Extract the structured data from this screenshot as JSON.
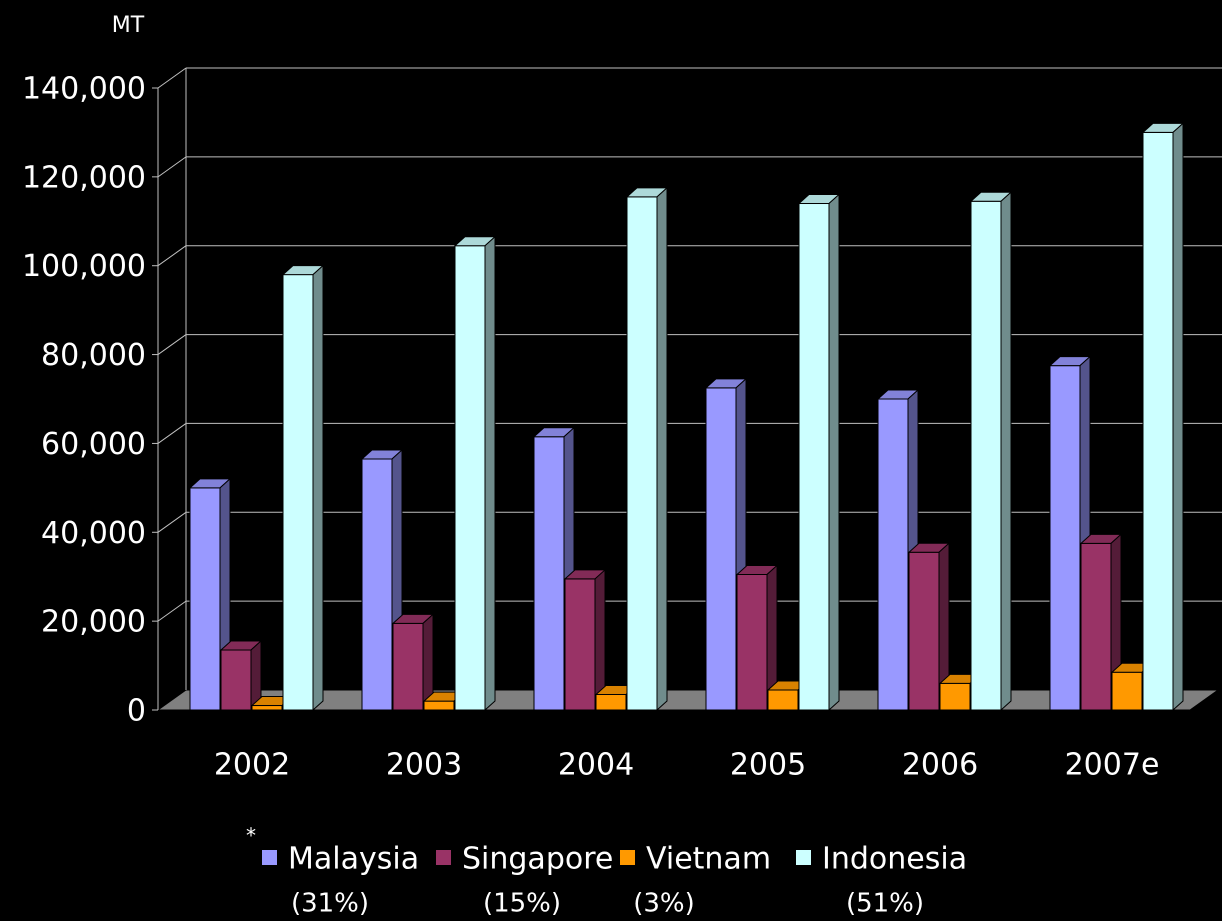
{
  "chart_data": {
    "type": "bar3d",
    "y_label": "MT",
    "categories": [
      "2002",
      "2003",
      "2004",
      "2005",
      "2006",
      "2007e"
    ],
    "series": [
      {
        "name": "Malaysia",
        "note": "(31%)",
        "color": "#9999ff",
        "values": [
          50000,
          56500,
          61500,
          72500,
          70000,
          77500
        ]
      },
      {
        "name": "Singapore",
        "note": "(15%)",
        "color": "#993366",
        "values": [
          13500,
          19500,
          29500,
          30500,
          35500,
          37500
        ]
      },
      {
        "name": "Vietnam",
        "note": "(3%)",
        "color": "#ff9900",
        "values": [
          1000,
          2000,
          3500,
          4500,
          6000,
          8500
        ]
      },
      {
        "name": "Indonesia",
        "note": "(51%)",
        "color": "#ccffff",
        "values": [
          98000,
          104500,
          115500,
          114000,
          114500,
          130000
        ]
      }
    ],
    "legend_mark": "*",
    "ylim": [
      0,
      140000
    ],
    "yticks": [
      0,
      {
        "value": 20000,
        "label": "20,000"
      },
      {
        "value": 40000,
        "label": "40,000"
      },
      {
        "value": 60000,
        "label": "60,000"
      },
      {
        "value": 80000,
        "label": "80,000"
      },
      {
        "value": 100000,
        "label": "100,000"
      },
      {
        "value": 120000,
        "label": "120,000"
      },
      {
        "value": 140000,
        "label": "140,000"
      }
    ],
    "grid": true,
    "legend": "bottom"
  }
}
